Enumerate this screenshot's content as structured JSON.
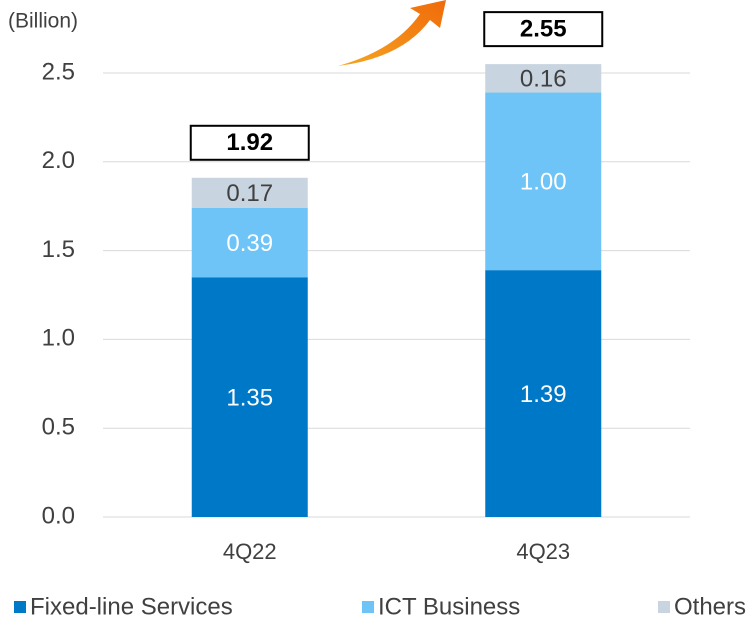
{
  "chart_data": {
    "type": "stacked_bar",
    "y_axis_label": "(Billion)",
    "categories": [
      "4Q22",
      "4Q23"
    ],
    "series": [
      {
        "name": "Fixed-line Services",
        "color": "#0078c8",
        "label_color": "#ffffff",
        "values": [
          1.35,
          1.39
        ]
      },
      {
        "name": "ICT Business",
        "color": "#6ec3f7",
        "label_color": "#ffffff",
        "values": [
          0.39,
          1
        ],
        "value_labels": [
          "0.39",
          "1.00"
        ]
      },
      {
        "name": "Others",
        "color": "#c8d4e0",
        "label_color": "#404040",
        "values": [
          0.17,
          0.16
        ]
      }
    ],
    "totals": [
      1.92,
      2.55
    ],
    "ylim": [
      0,
      2.5
    ],
    "yticks": [
      {
        "value": 0,
        "label": "0.0"
      },
      0.5,
      {
        "value": 1,
        "label": "1.0"
      },
      1.5,
      {
        "value": 2,
        "label": "2.0"
      },
      2.5
    ],
    "grid": true,
    "legend": "bottom"
  }
}
